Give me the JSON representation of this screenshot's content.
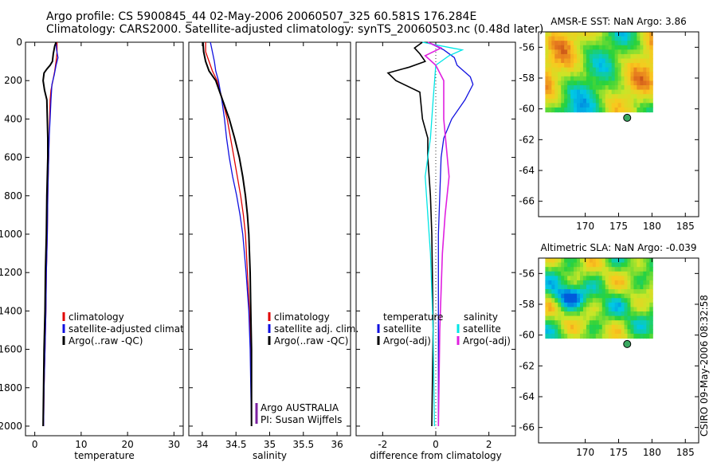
{
  "header": {
    "line1": "Argo profile: CS 5900845_44 02-May-2006 20060507_325 60.581S 176.284E",
    "line2": "Climatology: CARS2000. Satellite-adjusted climatology: synTS_20060503.nc (0.48d later)"
  },
  "colors": {
    "black": "#000000",
    "red": "#e00000",
    "blue": "#1010e0",
    "cyan": "#00e6e6",
    "magenta": "#e020e0",
    "purple": "#7a1fa0"
  },
  "chart_data": [
    {
      "id": "temperature",
      "type": "line",
      "xlabel": "temperature",
      "xlim": [
        -2,
        32
      ],
      "ylim": [
        2050,
        0
      ],
      "xticks": [
        0,
        10,
        20,
        30
      ],
      "yticks": [
        0,
        200,
        400,
        600,
        800,
        1000,
        1200,
        1400,
        1600,
        1800,
        2000
      ],
      "series": [
        {
          "name": "climatology",
          "color": "red",
          "width": 1.3,
          "points": [
            [
              4.8,
              0
            ],
            [
              4.8,
              50
            ],
            [
              4.6,
              100
            ],
            [
              4.3,
              150
            ],
            [
              3.9,
              200
            ],
            [
              3.5,
              250
            ],
            [
              3.3,
              300
            ],
            [
              3.2,
              400
            ],
            [
              3.1,
              500
            ],
            [
              3.0,
              600
            ],
            [
              2.9,
              700
            ],
            [
              2.8,
              800
            ],
            [
              2.7,
              1000
            ],
            [
              2.5,
              1200
            ],
            [
              2.4,
              1400
            ],
            [
              2.2,
              1600
            ],
            [
              2.0,
              1800
            ],
            [
              1.9,
              2000
            ]
          ]
        },
        {
          "name": "satellite-adjusted climatology",
          "color": "blue",
          "width": 1.3,
          "points": [
            [
              4.6,
              0
            ],
            [
              4.7,
              40
            ],
            [
              5.0,
              80
            ],
            [
              4.6,
              120
            ],
            [
              4.2,
              170
            ],
            [
              3.7,
              220
            ],
            [
              3.5,
              300
            ],
            [
              3.3,
              400
            ],
            [
              3.1,
              500
            ],
            [
              3.0,
              600
            ],
            [
              2.9,
              700
            ],
            [
              2.8,
              800
            ],
            [
              2.7,
              1000
            ],
            [
              2.5,
              1200
            ],
            [
              2.4,
              1400
            ],
            [
              2.2,
              1600
            ],
            [
              2.0,
              1800
            ],
            [
              1.9,
              2000
            ]
          ]
        },
        {
          "name": "Argo(..raw -QC)",
          "color": "black",
          "width": 2,
          "points": [
            [
              4.6,
              0
            ],
            [
              4.3,
              20
            ],
            [
              4.0,
              60
            ],
            [
              3.8,
              100
            ],
            [
              3.3,
              120
            ],
            [
              2.6,
              140
            ],
            [
              2.0,
              160
            ],
            [
              1.8,
              200
            ],
            [
              2.1,
              250
            ],
            [
              2.6,
              300
            ],
            [
              2.7,
              400
            ],
            [
              2.8,
              500
            ],
            [
              2.8,
              600
            ],
            [
              2.7,
              700
            ],
            [
              2.6,
              800
            ],
            [
              2.5,
              1000
            ],
            [
              2.3,
              1200
            ],
            [
              2.2,
              1400
            ],
            [
              2.0,
              1600
            ],
            [
              1.9,
              1800
            ],
            [
              1.8,
              2000
            ]
          ]
        }
      ],
      "legend": [
        "climatology",
        "satellite-adjusted climatology",
        "Argo(..raw -QC)"
      ]
    },
    {
      "id": "salinity",
      "type": "line",
      "xlabel": "salinity",
      "xlim": [
        33.8,
        36.2
      ],
      "ylim": [
        2050,
        0
      ],
      "xticks": [
        34,
        34.5,
        35,
        35.5,
        36
      ],
      "xticklabels": [
        "34",
        "34.5",
        "35",
        "35.5",
        "36"
      ],
      "series": [
        {
          "name": "climatology",
          "color": "red",
          "width": 1.3,
          "points": [
            [
              34.05,
              0
            ],
            [
              34.05,
              50
            ],
            [
              34.1,
              100
            ],
            [
              34.15,
              150
            ],
            [
              34.22,
              200
            ],
            [
              34.3,
              300
            ],
            [
              34.37,
              400
            ],
            [
              34.42,
              500
            ],
            [
              34.47,
              600
            ],
            [
              34.52,
              700
            ],
            [
              34.57,
              800
            ],
            [
              34.61,
              900
            ],
            [
              34.64,
              1000
            ],
            [
              34.67,
              1200
            ],
            [
              34.7,
              1400
            ],
            [
              34.72,
              1600
            ],
            [
              34.73,
              1800
            ],
            [
              34.73,
              2000
            ]
          ]
        },
        {
          "name": "satellite adj. clim.",
          "color": "blue",
          "width": 1.3,
          "points": [
            [
              34.12,
              0
            ],
            [
              34.15,
              50
            ],
            [
              34.18,
              100
            ],
            [
              34.2,
              150
            ],
            [
              34.24,
              200
            ],
            [
              34.29,
              300
            ],
            [
              34.33,
              400
            ],
            [
              34.36,
              500
            ],
            [
              34.4,
              600
            ],
            [
              34.45,
              700
            ],
            [
              34.51,
              800
            ],
            [
              34.56,
              900
            ],
            [
              34.6,
              1000
            ],
            [
              34.65,
              1200
            ],
            [
              34.69,
              1400
            ],
            [
              34.71,
              1600
            ],
            [
              34.72,
              1800
            ],
            [
              34.73,
              2000
            ]
          ]
        },
        {
          "name": "Argo(..raw -QC)",
          "color": "black",
          "width": 2,
          "points": [
            [
              34.01,
              0
            ],
            [
              34.02,
              50
            ],
            [
              34.05,
              100
            ],
            [
              34.1,
              150
            ],
            [
              34.2,
              200
            ],
            [
              34.3,
              300
            ],
            [
              34.4,
              400
            ],
            [
              34.48,
              500
            ],
            [
              34.55,
              600
            ],
            [
              34.6,
              700
            ],
            [
              34.64,
              800
            ],
            [
              34.67,
              900
            ],
            [
              34.69,
              1000
            ],
            [
              34.71,
              1200
            ],
            [
              34.72,
              1400
            ],
            [
              34.73,
              1600
            ],
            [
              34.73,
              1800
            ],
            [
              34.73,
              2000
            ]
          ]
        }
      ],
      "legend": [
        "climatology",
        "satellite adj. clim.",
        "Argo(..raw -QC)"
      ],
      "annotations": [
        "Argo AUSTRALIA",
        "PI: Susan Wijffels"
      ]
    },
    {
      "id": "difference",
      "type": "line",
      "xlabel": "difference from climatology",
      "xlim": [
        -3,
        3
      ],
      "ylim": [
        2050,
        0
      ],
      "xticks": [
        -2,
        0,
        2
      ],
      "series": [
        {
          "name": "temperature satellite",
          "color": "blue",
          "width": 1.3,
          "points": [
            [
              -0.3,
              0
            ],
            [
              0.3,
              40
            ],
            [
              0.7,
              80
            ],
            [
              0.8,
              120
            ],
            [
              1.3,
              180
            ],
            [
              1.4,
              220
            ],
            [
              1.1,
              300
            ],
            [
              0.6,
              400
            ],
            [
              0.3,
              500
            ],
            [
              0.2,
              600
            ],
            [
              0.15,
              800
            ],
            [
              0.1,
              1000
            ],
            [
              0.1,
              1500
            ],
            [
              0.1,
              2000
            ]
          ]
        },
        {
          "name": "temperature Argo(-adj)",
          "color": "black",
          "width": 1.6,
          "points": [
            [
              -0.5,
              0
            ],
            [
              -0.8,
              30
            ],
            [
              -0.6,
              60
            ],
            [
              -0.4,
              100
            ],
            [
              -1.0,
              130
            ],
            [
              -1.8,
              160
            ],
            [
              -1.5,
              200
            ],
            [
              -0.6,
              260
            ],
            [
              -0.5,
              400
            ],
            [
              -0.3,
              500
            ],
            [
              -0.3,
              600
            ],
            [
              -0.2,
              800
            ],
            [
              -0.15,
              1000
            ],
            [
              -0.1,
              1500
            ],
            [
              -0.15,
              2000
            ]
          ]
        },
        {
          "name": "salinity satellite",
          "color": "cyan",
          "width": 1.3,
          "points": [
            [
              -0.5,
              0
            ],
            [
              0.6,
              30
            ],
            [
              1.0,
              40
            ],
            [
              0.5,
              70
            ],
            [
              0.0,
              120
            ],
            [
              -0.1,
              300
            ],
            [
              -0.2,
              500
            ],
            [
              -0.4,
              700
            ],
            [
              -0.3,
              900
            ],
            [
              -0.2,
              1100
            ],
            [
              -0.1,
              1500
            ],
            [
              -0.05,
              2000
            ]
          ]
        },
        {
          "name": "salinity Argo(-adj)",
          "color": "magenta",
          "width": 1.6,
          "points": [
            [
              -0.3,
              0
            ],
            [
              0.2,
              30
            ],
            [
              -0.4,
              70
            ],
            [
              0.0,
              120
            ],
            [
              0.3,
              200
            ],
            [
              0.3,
              400
            ],
            [
              0.5,
              700
            ],
            [
              0.35,
              900
            ],
            [
              0.25,
              1100
            ],
            [
              0.15,
              1500
            ],
            [
              0.1,
              2000
            ]
          ]
        }
      ],
      "legend_headers": [
        "temperature",
        "salinity"
      ],
      "legend": [
        "satellite",
        "Argo(-adj)",
        "satellite",
        "Argo(-adj)"
      ]
    },
    {
      "id": "sst_map",
      "type": "heatmap",
      "title": "AMSR-E SST: NaN Argo: 3.86",
      "xlim": [
        163,
        187
      ],
      "ylim": [
        -67,
        -55
      ],
      "xticks": [
        170,
        175,
        180,
        185
      ],
      "yticks": [
        -56,
        -58,
        -60,
        -62,
        -64,
        -66
      ],
      "float_position": [
        176.284,
        -60.581
      ]
    },
    {
      "id": "sla_map",
      "type": "heatmap",
      "title": "Altimetric SLA: NaN Argo: -0.039",
      "xlim": [
        163,
        187
      ],
      "ylim": [
        -67,
        -55
      ],
      "xticks": [
        170,
        175,
        180,
        185
      ],
      "yticks": [
        -56,
        -58,
        -60,
        -62,
        -64,
        -66
      ],
      "float_position": [
        176.284,
        -60.581
      ]
    }
  ],
  "footer": {
    "credit": "CSIRO 09-May-2006 08:32:58"
  }
}
